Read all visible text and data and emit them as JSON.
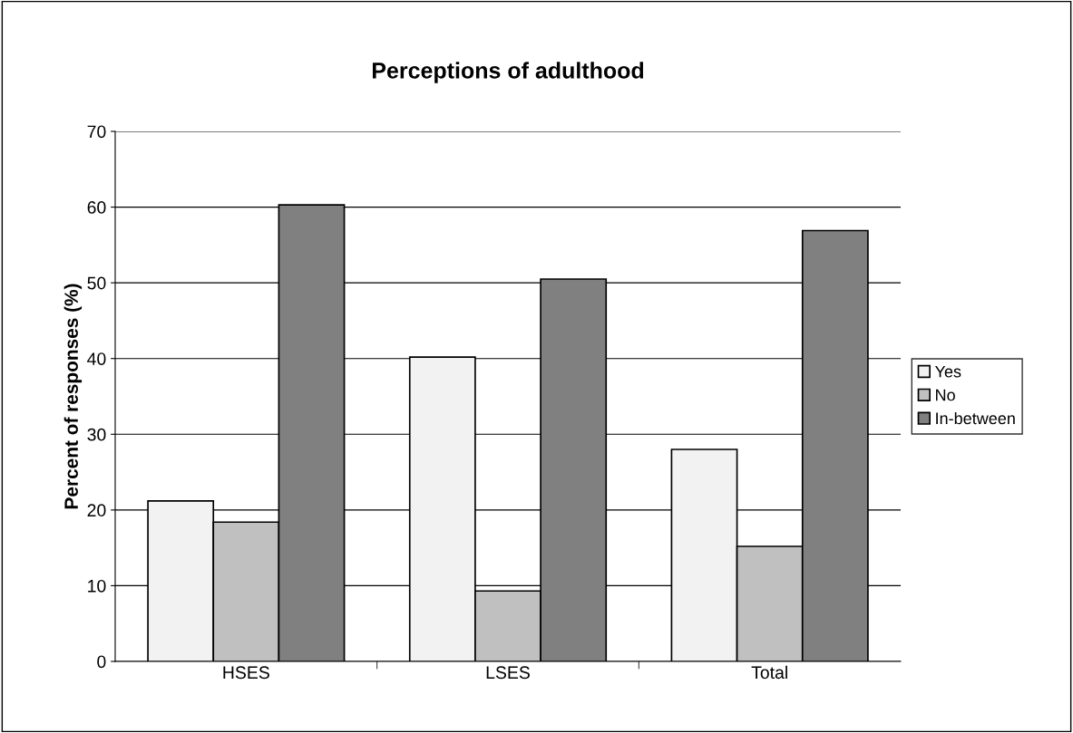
{
  "chart_data": {
    "type": "bar",
    "title": "Perceptions of adulthood",
    "ylabel": "Percent of responses (%)",
    "categories": [
      "HSES",
      "LSES",
      "Total"
    ],
    "series": [
      {
        "name": "Yes",
        "color": "#f2f2f2",
        "values": [
          21.2,
          40.2,
          28.0
        ]
      },
      {
        "name": "No",
        "color": "#c0c0c0",
        "values": [
          18.4,
          9.3,
          15.2
        ]
      },
      {
        "name": "In-between",
        "color": "#808080",
        "values": [
          60.3,
          50.5,
          56.9
        ]
      }
    ],
    "ylim": [
      0,
      70
    ],
    "yticks": [
      0,
      10,
      20,
      30,
      40,
      50,
      60,
      70
    ],
    "grid": "y",
    "legend": "right"
  }
}
